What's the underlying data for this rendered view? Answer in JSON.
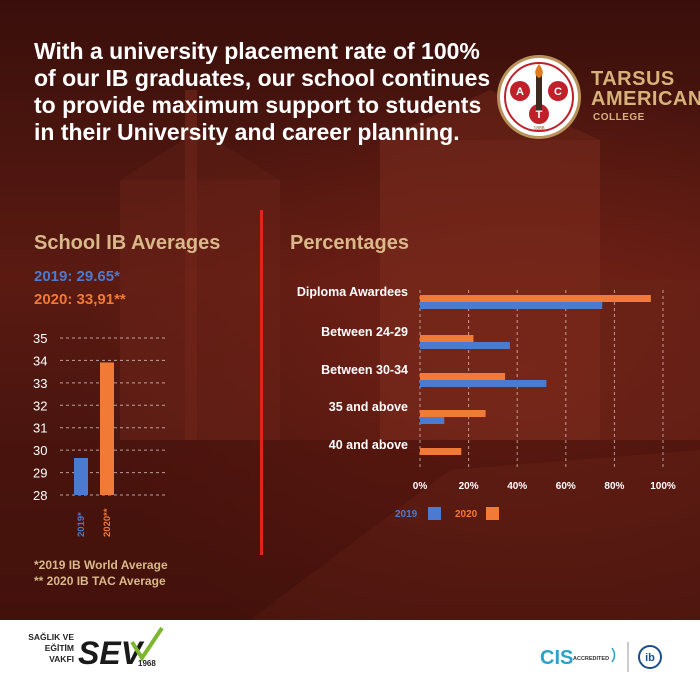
{
  "headline": "With a university placement rate of 100% of our IB graduates, our school continues to provide maximum support to students in their University and career planning.",
  "logo": {
    "letters": [
      "A",
      "C",
      "T"
    ],
    "year": "1888",
    "name_line1": "TARSUS",
    "name_line2": "AMERICAN",
    "name_line3": "COLLEGE"
  },
  "colors": {
    "series_2019": "#4a7bd0",
    "series_2020": "#f07a36",
    "accent_red": "#e1251b",
    "gold": "#d9b98a"
  },
  "left_title": "School IB Averages",
  "legend_2019": "2019: 29.65*",
  "legend_2020": "2020: 33,91**",
  "footnote_1": "*2019 IB World Average",
  "footnote_2": "** 2020 IB TAC Average",
  "right_title": "Percentages",
  "bottom": {
    "sev_line1": "SAĞLIK VE",
    "sev_line2": "EĞİTİM",
    "sev_line3": "VAKFI",
    "sev_logo": "SEV",
    "sev_year": "1968",
    "cis_text": "CIS",
    "cis_accredited": "ACCREDITED",
    "ib_text": "ib"
  },
  "chart_data": [
    {
      "type": "bar",
      "title": "School IB Averages",
      "categories": [
        "2019*",
        "2020**"
      ],
      "values": [
        29.65,
        33.91
      ],
      "ylim": [
        28,
        35
      ],
      "yticks": [
        "28",
        "29",
        "30",
        "31",
        "32",
        "33",
        "34",
        "35"
      ],
      "grid": true
    },
    {
      "type": "bar",
      "orientation": "horizontal",
      "title": "Percentages",
      "categories": [
        "Diploma Awardees",
        "Between 24-29",
        "Between 30-34",
        "35 and above",
        "40 and above"
      ],
      "series": [
        {
          "name": "2019",
          "values": [
            75,
            37,
            52,
            10,
            0
          ]
        },
        {
          "name": "2020",
          "values": [
            95,
            22,
            35,
            27,
            17
          ]
        }
      ],
      "xlim": [
        0,
        100
      ],
      "xticks": [
        "0%",
        "20%",
        "40%",
        "60%",
        "80%",
        "100%"
      ],
      "legend": "bottom-left",
      "grid": true
    }
  ]
}
